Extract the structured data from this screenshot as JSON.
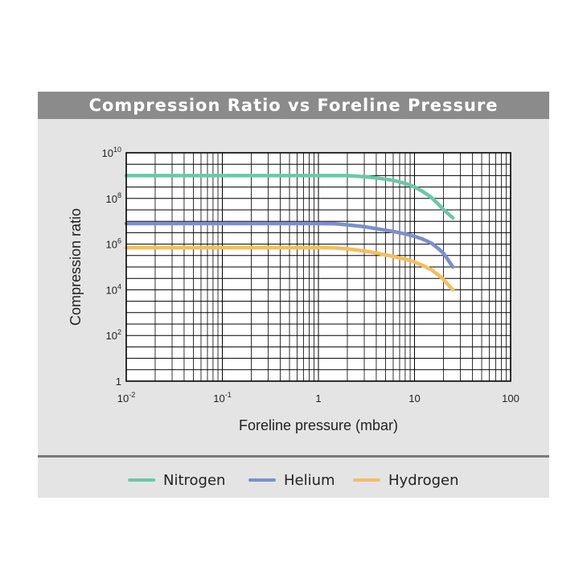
{
  "chart_data": {
    "type": "line",
    "title": "Compression Ratio vs Foreline Pressure",
    "xlabel": "Foreline pressure (mbar)",
    "ylabel": "Compression ratio",
    "x_scale": "log",
    "y_scale": "log",
    "xlim": [
      0.01,
      100
    ],
    "ylim": [
      1,
      10000000000
    ],
    "grid": true,
    "legend_position": "bottom",
    "x_ticks": [
      {
        "value": 0.01,
        "base": "10",
        "exp": "-2"
      },
      {
        "value": 0.1,
        "base": "10",
        "exp": "-1"
      },
      {
        "value": 1,
        "base": "1",
        "exp": ""
      },
      {
        "value": 10,
        "base": "10",
        "exp": ""
      },
      {
        "value": 100,
        "base": "100",
        "exp": ""
      }
    ],
    "y_ticks": [
      {
        "value": 1,
        "base": "1",
        "exp": ""
      },
      {
        "value": 100,
        "base": "10",
        "exp": "2"
      },
      {
        "value": 10000,
        "base": "10",
        "exp": "4"
      },
      {
        "value": 1000000,
        "base": "10",
        "exp": "6"
      },
      {
        "value": 100000000,
        "base": "10",
        "exp": "8"
      },
      {
        "value": 10000000000,
        "base": "10",
        "exp": "10"
      }
    ],
    "series": [
      {
        "name": "Nitrogen",
        "color": "#6cc7a9",
        "x": [
          0.01,
          0.1,
          1,
          2,
          3,
          4,
          6,
          8,
          10,
          12,
          15,
          18,
          20,
          25
        ],
        "y": [
          1000000000,
          1000000000,
          1000000000,
          1000000000,
          900000000,
          800000000,
          620000000,
          460000000,
          320000000,
          210000000,
          110000000,
          52000000,
          33000000,
          14000000
        ]
      },
      {
        "name": "Helium",
        "color": "#7b8fca",
        "x": [
          0.01,
          0.1,
          1,
          1.5,
          2,
          3,
          4,
          6,
          8,
          10,
          12,
          15,
          18,
          20,
          25
        ],
        "y": [
          8000000,
          8000000,
          8000000,
          7800000,
          7000000,
          5800000,
          4800000,
          3600000,
          2800000,
          2200000,
          1700000,
          1100000,
          600000,
          400000,
          100000
        ]
      },
      {
        "name": "Hydrogen",
        "color": "#f2bf5e",
        "x": [
          0.01,
          0.1,
          1,
          1.5,
          2,
          3,
          4,
          6,
          8,
          10,
          12,
          15,
          18,
          20,
          25
        ],
        "y": [
          700000,
          700000,
          700000,
          680000,
          620000,
          500000,
          410000,
          290000,
          220000,
          165000,
          120000,
          75000,
          42000,
          28000,
          10000
        ]
      }
    ]
  }
}
